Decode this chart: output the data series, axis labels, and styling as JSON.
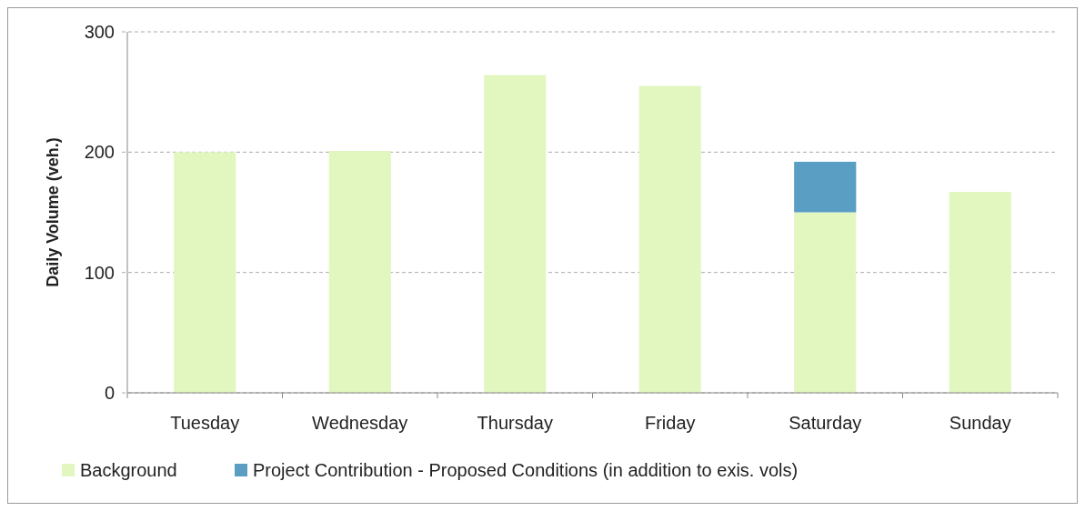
{
  "chart_data": {
    "type": "bar",
    "stacked": true,
    "ylabel": "Daily Volume (veh.)",
    "categories": [
      "Tuesday",
      "Wednesday",
      "Thursday",
      "Friday",
      "Saturday",
      "Sunday"
    ],
    "series": [
      {
        "name": "Background",
        "color": "#e2f7c0",
        "values": [
          200,
          201,
          264,
          255,
          150,
          167
        ]
      },
      {
        "name": "Project Contribution - Proposed Conditions (in addition to exis. vols)",
        "color": "#5b9ec4",
        "values": [
          null,
          null,
          null,
          null,
          42,
          null
        ]
      }
    ],
    "ylim": [
      0,
      300
    ],
    "yticks": [
      0,
      100,
      200,
      300
    ],
    "grid": "y",
    "legend": "bottom left"
  }
}
